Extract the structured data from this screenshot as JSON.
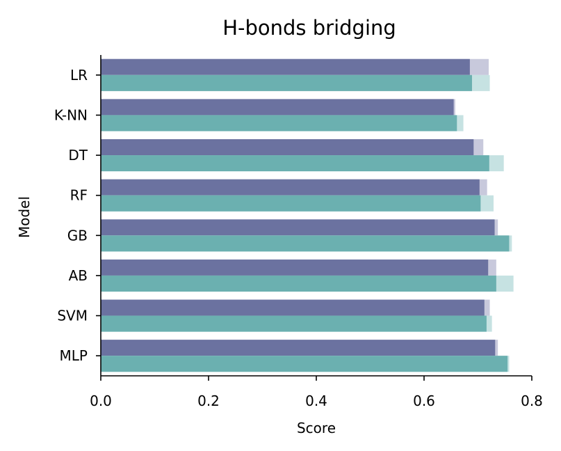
{
  "chart_data": {
    "type": "bar",
    "orientation": "horizontal",
    "title": "H-bonds bridging",
    "xlabel": "Score",
    "ylabel": "Model",
    "xlim": [
      0.0,
      0.8
    ],
    "xticks": [
      "0.0",
      "0.2",
      "0.4",
      "0.6",
      "0.8"
    ],
    "categories": [
      "LR",
      "K-NN",
      "DT",
      "RF",
      "GB",
      "AB",
      "SVM",
      "MLP"
    ],
    "series": [
      {
        "color": "#6b72a0",
        "light_color": "#c8c9dc",
        "values": [
          0.685,
          0.655,
          0.692,
          0.703,
          0.731,
          0.719,
          0.712,
          0.732
        ],
        "overlay_values": [
          0.72,
          0.658,
          0.71,
          0.717,
          0.737,
          0.734,
          0.722,
          0.737
        ]
      },
      {
        "color": "#6bb0b0",
        "light_color": "#c6e2e2",
        "values": [
          0.689,
          0.661,
          0.721,
          0.705,
          0.758,
          0.734,
          0.716,
          0.755
        ],
        "overlay_values": [
          0.722,
          0.673,
          0.748,
          0.729,
          0.763,
          0.766,
          0.726,
          0.758
        ]
      }
    ],
    "grid": false,
    "legend": "none"
  }
}
